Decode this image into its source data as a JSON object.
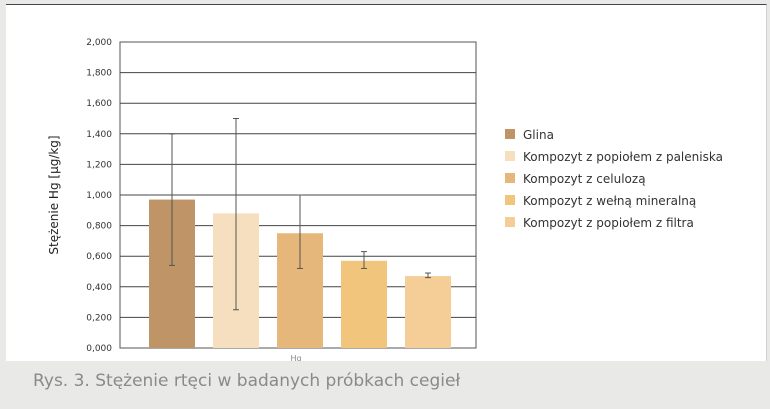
{
  "caption": "Rys. 3. Stężenie rtęci w badanych próbkach cegieł",
  "chart_data": {
    "type": "bar",
    "title": "",
    "xlabel": "",
    "ylabel": "Stężenie Hg [µg/kg]",
    "categories": [
      "Hg"
    ],
    "ylim": [
      0,
      2.0
    ],
    "yticks": [
      "0,000",
      "0,200",
      "0,400",
      "0,600",
      "0,800",
      "1,000",
      "1,200",
      "1,400",
      "1,600",
      "1,800",
      "2,000"
    ],
    "grid": true,
    "legend_position": "right",
    "series": [
      {
        "name": "Glina",
        "values": [
          0.97
        ],
        "error": [
          [
            0.54,
            1.4
          ]
        ],
        "color": "#bf9466"
      },
      {
        "name": "Kompozyt z popiołem z paleniska",
        "values": [
          0.88
        ],
        "error": [
          [
            0.25,
            1.5
          ]
        ],
        "color": "#f6dfbf"
      },
      {
        "name": "Kompozyt z celulozą",
        "values": [
          0.75
        ],
        "error": [
          [
            0.52,
            1.0
          ]
        ],
        "color": "#e5b77a"
      },
      {
        "name": "Kompozyt z wełną mineralną",
        "values": [
          0.57
        ],
        "error": [
          [
            0.52,
            0.63
          ]
        ],
        "color": "#f2c57c"
      },
      {
        "name": "Kompozyt z popiołem z filtra",
        "values": [
          0.47
        ],
        "error": [
          [
            0.46,
            0.49
          ]
        ],
        "color": "#f5cd96"
      }
    ]
  }
}
